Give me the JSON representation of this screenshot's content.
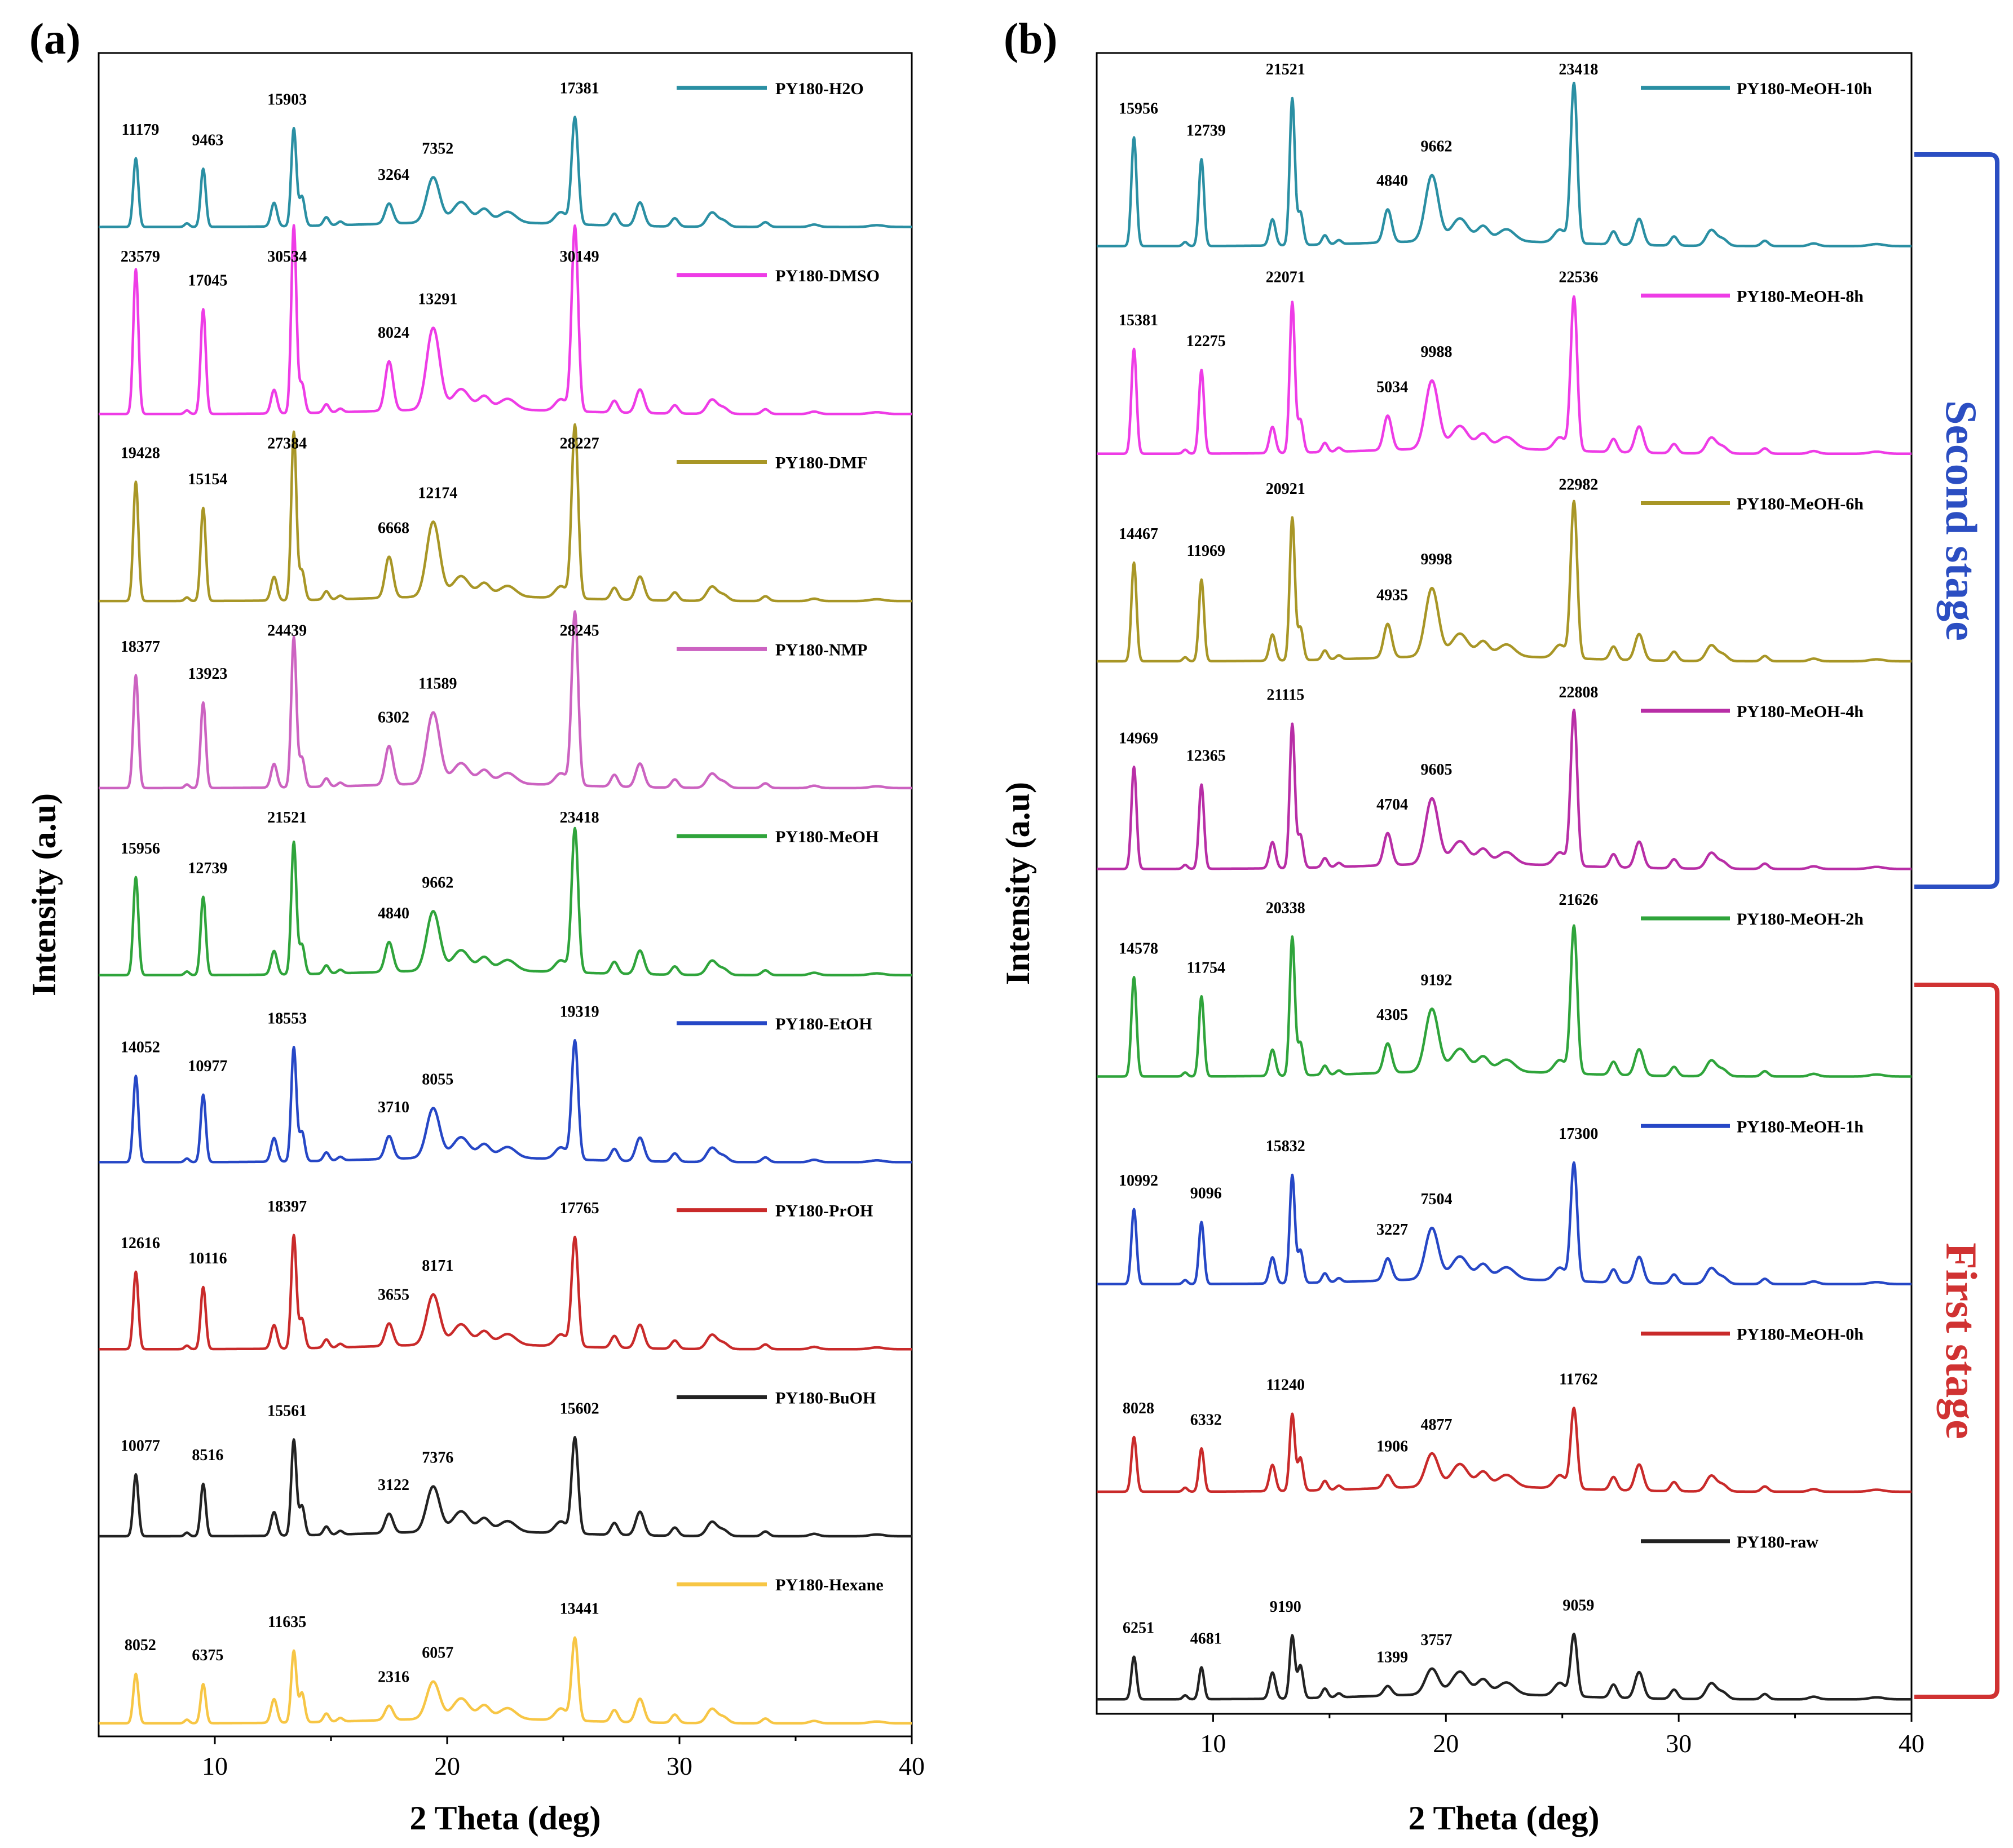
{
  "chart_data": [
    {
      "type": "line",
      "panel_label": "(a)",
      "xlabel": "2 Theta (deg)",
      "ylabel": "Intensity (a.u)",
      "xlim": [
        5,
        40
      ],
      "xticks": [
        10,
        20,
        30,
        40
      ],
      "peak_positions_2theta": [
        6.6,
        9.5,
        13.4,
        17.5,
        19.4,
        25.5
      ],
      "series": [
        {
          "name": "PY180-H2O",
          "color": "#2a8fa3",
          "peak_labels": [
            "11179",
            "9463",
            "15903",
            "3264",
            "7352",
            "17381"
          ],
          "peak_values": [
            11179,
            9463,
            15903,
            3264,
            7352,
            17381
          ]
        },
        {
          "name": "PY180-DMSO",
          "color": "#ee3ce6",
          "peak_labels": [
            "23579",
            "17045",
            "30534",
            "8024",
            "13291",
            "30149"
          ],
          "peak_values": [
            23579,
            17045,
            30534,
            8024,
            13291,
            30149
          ]
        },
        {
          "name": "PY180-DMF",
          "color": "#a89626",
          "peak_labels": [
            "19428",
            "15154",
            "27384",
            "6668",
            "12174",
            "28227"
          ],
          "peak_values": [
            19428,
            15154,
            27384,
            6668,
            12174,
            28227
          ]
        },
        {
          "name": "PY180-NMP",
          "color": "#cc63c1",
          "peak_labels": [
            "18377",
            "13923",
            "24439",
            "6302",
            "11589",
            "28245"
          ],
          "peak_values": [
            18377,
            13923,
            24439,
            6302,
            11589,
            28245
          ]
        },
        {
          "name": "PY180-MeOH",
          "color": "#2fa43b",
          "peak_labels": [
            "15956",
            "12739",
            "21521",
            "4840",
            "9662",
            "23418"
          ],
          "peak_values": [
            15956,
            12739,
            21521,
            4840,
            9662,
            23418
          ]
        },
        {
          "name": "PY180-EtOH",
          "color": "#2647c6",
          "peak_labels": [
            "14052",
            "10977",
            "18553",
            "3710",
            "8055",
            "19319"
          ],
          "peak_values": [
            14052,
            10977,
            18553,
            3710,
            8055,
            19319
          ]
        },
        {
          "name": "PY180-PrOH",
          "color": "#c92a2a",
          "peak_labels": [
            "12616",
            "10116",
            "18397",
            "3655",
            "8171",
            "17765"
          ],
          "peak_values": [
            12616,
            10116,
            18397,
            3655,
            8171,
            17765
          ]
        },
        {
          "name": "PY180-BuOH",
          "color": "#222222",
          "peak_labels": [
            "10077",
            "8516",
            "15561",
            "3122",
            "7376",
            "15602"
          ],
          "peak_values": [
            10077,
            8516,
            15561,
            3122,
            7376,
            15602
          ]
        },
        {
          "name": "PY180-Hexane",
          "color": "#f7c645",
          "peak_labels": [
            "8052",
            "6375",
            "11635",
            "2316",
            "6057",
            "13441"
          ],
          "peak_values": [
            8052,
            6375,
            11635,
            2316,
            6057,
            13441
          ]
        }
      ]
    },
    {
      "type": "line",
      "panel_label": "(b)",
      "xlabel": "2 Theta (deg)",
      "ylabel": "Intensity (a.u)",
      "xlim": [
        5,
        40
      ],
      "xticks": [
        10,
        20,
        30,
        40
      ],
      "peak_positions_2theta": [
        6.6,
        9.5,
        13.4,
        17.5,
        19.4,
        25.5
      ],
      "series": [
        {
          "name": "PY180-MeOH-10h",
          "color": "#2a8fa3",
          "peak_labels": [
            "15956",
            "12739",
            "21521",
            "4840",
            "9662",
            "23418"
          ],
          "peak_values": [
            15956,
            12739,
            21521,
            4840,
            9662,
            23418
          ]
        },
        {
          "name": "PY180-MeOH-8h",
          "color": "#ee3ce6",
          "peak_labels": [
            "15381",
            "12275",
            "22071",
            "5034",
            "9988",
            "22536"
          ],
          "peak_values": [
            15381,
            12275,
            22071,
            5034,
            9988,
            22536
          ]
        },
        {
          "name": "PY180-MeOH-6h",
          "color": "#a89626",
          "peak_labels": [
            "14467",
            "11969",
            "20921",
            "4935",
            "9998",
            "22982"
          ],
          "peak_values": [
            14467,
            11969,
            20921,
            4935,
            9998,
            22982
          ]
        },
        {
          "name": "PY180-MeOH-4h",
          "color": "#b82ea6",
          "peak_labels": [
            "14969",
            "12365",
            "21115",
            "4704",
            "9605",
            "22808"
          ],
          "peak_values": [
            14969,
            12365,
            21115,
            4704,
            9605,
            22808
          ]
        },
        {
          "name": "PY180-MeOH-2h",
          "color": "#2fa43b",
          "peak_labels": [
            "14578",
            "11754",
            "20338",
            "4305",
            "9192",
            "21626"
          ],
          "peak_values": [
            14578,
            11754,
            20338,
            4305,
            9192,
            21626
          ]
        },
        {
          "name": "PY180-MeOH-1h",
          "color": "#2647c6",
          "peak_labels": [
            "10992",
            "9096",
            "15832",
            "3227",
            "7504",
            "17300"
          ],
          "peak_values": [
            10992,
            9096,
            15832,
            3227,
            7504,
            17300
          ]
        },
        {
          "name": "PY180-MeOH-0h",
          "color": "#c92a2a",
          "peak_labels": [
            "8028",
            "6332",
            "11240",
            "1906",
            "4877",
            "11762"
          ],
          "peak_values": [
            8028,
            6332,
            11240,
            1906,
            4877,
            11762
          ]
        },
        {
          "name": "PY180-raw",
          "color": "#222222",
          "peak_labels": [
            "6251",
            "4681",
            "9190",
            "1399",
            "3757",
            "9059"
          ],
          "peak_values": [
            6251,
            4681,
            9190,
            1399,
            3757,
            9059
          ]
        }
      ],
      "stages": [
        {
          "label": "Second stage",
          "color": "#2b4ec2",
          "covers": [
            "PY180-MeOH-10h",
            "PY180-MeOH-8h",
            "PY180-MeOH-6h",
            "PY180-MeOH-4h"
          ]
        },
        {
          "label": "First stage",
          "color": "#d03232",
          "covers": [
            "PY180-MeOH-2h",
            "PY180-MeOH-1h",
            "PY180-MeOH-0h",
            "PY180-raw"
          ]
        }
      ]
    }
  ]
}
